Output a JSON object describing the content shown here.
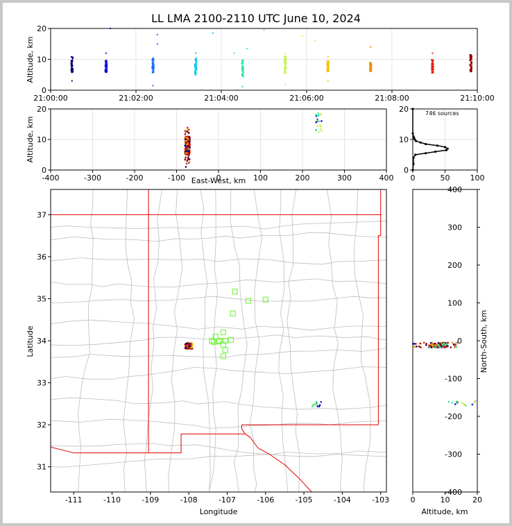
{
  "title": "LL LMA 2100-2110 UTC June 10, 2024",
  "colors": {
    "state_border": "#e00000",
    "county": "#bdbdbd",
    "grid": "#dddddd",
    "box": "#7cf44a"
  },
  "chart_data": [
    {
      "type": "scatter",
      "name": "time-altitude",
      "xlabel": "",
      "ylabel": "Altitude, km",
      "xticks": [
        "21:00:00",
        "21:02:00",
        "21:04:00",
        "21:06:00",
        "21:08:00",
        "21:10:00"
      ],
      "xlim_minutes": [
        0,
        10
      ],
      "ylim": [
        0,
        20
      ],
      "yticks": [
        0,
        10,
        20
      ],
      "grid": true,
      "clusters": [
        {
          "t": 0.5,
          "alt": [
            5.5,
            11
          ],
          "color": "#0a0070"
        },
        {
          "t": 1.3,
          "alt": [
            5.8,
            10
          ],
          "color": "#1212d8"
        },
        {
          "t": 2.4,
          "alt": [
            5.5,
            10.5
          ],
          "color": "#1f6cff"
        },
        {
          "t": 3.4,
          "alt": [
            5,
            10.5
          ],
          "color": "#00c8f0"
        },
        {
          "t": 4.5,
          "alt": [
            4.5,
            10
          ],
          "color": "#30e8a0"
        },
        {
          "t": 5.5,
          "alt": [
            5.5,
            11
          ],
          "color": "#c8f050"
        },
        {
          "t": 6.5,
          "alt": [
            5.8,
            9.5
          ],
          "color": "#f8c000"
        },
        {
          "t": 7.5,
          "alt": [
            6,
            9
          ],
          "color": "#f09000"
        },
        {
          "t": 8.95,
          "alt": [
            5.5,
            10
          ],
          "color": "#e82010"
        },
        {
          "t": 9.85,
          "alt": [
            6,
            11.5
          ],
          "color": "#900000"
        }
      ],
      "outliers": [
        {
          "t": 1.4,
          "alt": 20,
          "color": "#1212d8"
        },
        {
          "t": 2.5,
          "alt": 18,
          "color": "#1f6cff"
        },
        {
          "t": 2.5,
          "alt": 15,
          "color": "#1f6cff"
        },
        {
          "t": 2.4,
          "alt": 1.5,
          "color": "#1f6cff"
        },
        {
          "t": 3.8,
          "alt": 18.5,
          "color": "#00c8f0"
        },
        {
          "t": 4.3,
          "alt": 12,
          "color": "#30e8a0"
        },
        {
          "t": 4.5,
          "alt": 1.2,
          "color": "#30e8a0"
        },
        {
          "t": 4.6,
          "alt": 13.5,
          "color": "#30e8a0"
        },
        {
          "t": 5.0,
          "alt": 19.5,
          "color": "#60f070"
        },
        {
          "t": 5.5,
          "alt": 1.7,
          "color": "#c8f050"
        },
        {
          "t": 5.9,
          "alt": 17.5,
          "color": "#d8f040"
        },
        {
          "t": 6.2,
          "alt": 16,
          "color": "#e8e040"
        },
        {
          "t": 6.5,
          "alt": 3.0,
          "color": "#f8c000"
        },
        {
          "t": 7.5,
          "alt": 14,
          "color": "#f09000"
        },
        {
          "t": 8.95,
          "alt": 12,
          "color": "#e82010"
        },
        {
          "t": 0.5,
          "alt": 3.0,
          "color": "#0a0070"
        },
        {
          "t": 1.3,
          "alt": 12,
          "color": "#1212d8"
        },
        {
          "t": 3.4,
          "alt": 12,
          "color": "#00c8f0"
        },
        {
          "t": 6.5,
          "alt": 10.8,
          "color": "#f8c000"
        },
        {
          "t": 5.5,
          "alt": 12,
          "color": "#c8f050"
        }
      ]
    },
    {
      "type": "scatter",
      "name": "east-west-altitude",
      "xlabel": "East-West, km",
      "ylabel": "Altitude, km",
      "xlim": [
        -400,
        400
      ],
      "xticks": [
        -400,
        -300,
        -200,
        -100,
        0,
        100,
        200,
        300,
        400
      ],
      "ylim": [
        0,
        20
      ],
      "yticks": [
        0,
        10,
        20
      ],
      "grid": true,
      "clusters": [
        {
          "x": [
            -80,
            -68
          ],
          "alt": [
            1,
            14
          ],
          "colors": [
            "#0a0070",
            "#900000",
            "#e82010",
            "#f09000"
          ]
        },
        {
          "x": [
            232,
            246
          ],
          "alt": [
            12,
            20
          ],
          "colors": [
            "#1212d8",
            "#30e8a0",
            "#c8f050"
          ]
        }
      ]
    },
    {
      "type": "line",
      "name": "altitude-histogram",
      "annotation": "746 sources",
      "xlim": [
        0,
        100
      ],
      "xticks": [
        0,
        50,
        100
      ],
      "ylim": [
        0,
        20
      ],
      "yticks": [
        0,
        10,
        20
      ],
      "profile": [
        {
          "alt": 0.0,
          "count": 0
        },
        {
          "alt": 2.0,
          "count": 1
        },
        {
          "alt": 4.0,
          "count": 1
        },
        {
          "alt": 5.0,
          "count": 4
        },
        {
          "alt": 5.5,
          "count": 20
        },
        {
          "alt": 6.0,
          "count": 35
        },
        {
          "alt": 6.5,
          "count": 52
        },
        {
          "alt": 7.0,
          "count": 54
        },
        {
          "alt": 7.5,
          "count": 50
        },
        {
          "alt": 8.0,
          "count": 38
        },
        {
          "alt": 8.5,
          "count": 20
        },
        {
          "alt": 9.0,
          "count": 12
        },
        {
          "alt": 9.5,
          "count": 5
        },
        {
          "alt": 10.0,
          "count": 3
        },
        {
          "alt": 10.5,
          "count": 2
        },
        {
          "alt": 11.0,
          "count": 1
        },
        {
          "alt": 12.0,
          "count": 0
        },
        {
          "alt": 20.0,
          "count": 0
        }
      ]
    },
    {
      "type": "scatter",
      "name": "plan-view",
      "xlabel": "Longitude",
      "ylabel": "Latitude",
      "xlim": [
        -111.6,
        -102.85
      ],
      "xticks": [
        -111,
        -110,
        -109,
        -108,
        -107,
        -106,
        -105,
        -104,
        -103
      ],
      "ylim": [
        30.4,
        37.6
      ],
      "yticks": [
        31,
        32,
        33,
        34,
        35,
        36,
        37
      ],
      "stations": [
        {
          "lon": -107.4,
          "lat": 34.0
        },
        {
          "lon": -107.3,
          "lat": 34.1
        },
        {
          "lon": -107.25,
          "lat": 33.98
        },
        {
          "lon": -107.1,
          "lat": 34.2
        },
        {
          "lon": -107.05,
          "lat": 34.0
        },
        {
          "lon": -107.1,
          "lat": 33.9
        },
        {
          "lon": -106.9,
          "lat": 34.02
        },
        {
          "lon": -107.05,
          "lat": 33.78
        },
        {
          "lon": -107.1,
          "lat": 33.63
        },
        {
          "lon": -106.85,
          "lat": 34.65
        },
        {
          "lon": -106.8,
          "lat": 35.17
        },
        {
          "lon": -106.45,
          "lat": 34.95
        },
        {
          "lon": -106.0,
          "lat": 34.98
        },
        {
          "lon": -107.35,
          "lat": 33.97
        },
        {
          "lon": -107.2,
          "lat": 34.0
        }
      ],
      "clusters": [
        {
          "lon": [
            -108.1,
            -107.9
          ],
          "lat": [
            33.8,
            33.95
          ],
          "colors": [
            "#0a0070",
            "#900000",
            "#e82010",
            "#f8c000"
          ]
        },
        {
          "lon": [
            -104.8,
            -104.55
          ],
          "lat": [
            32.43,
            32.55
          ],
          "colors": [
            "#1212d8",
            "#30e8a0",
            "#c8f050"
          ]
        }
      ]
    },
    {
      "type": "scatter",
      "name": "altitude-north-south",
      "xlabel": "Altitude, km",
      "ylabel": "North-South, km",
      "xlim": [
        0,
        20
      ],
      "xticks": [
        0,
        10,
        20
      ],
      "ylim": [
        -400,
        400
      ],
      "yticks": [
        -400,
        -300,
        -200,
        -100,
        0,
        100,
        200,
        300,
        400
      ],
      "clusters": [
        {
          "alt": [
            0,
            14
          ],
          "ns": [
            -18,
            -5
          ],
          "colors": [
            "#0a0070",
            "#900000",
            "#e82010",
            "#f09000",
            "#30e8a0"
          ]
        },
        {
          "alt": [
            11,
            20
          ],
          "ns": [
            -172,
            -160
          ],
          "colors": [
            "#1212d8",
            "#30e8a0",
            "#c8f050"
          ]
        }
      ]
    }
  ]
}
